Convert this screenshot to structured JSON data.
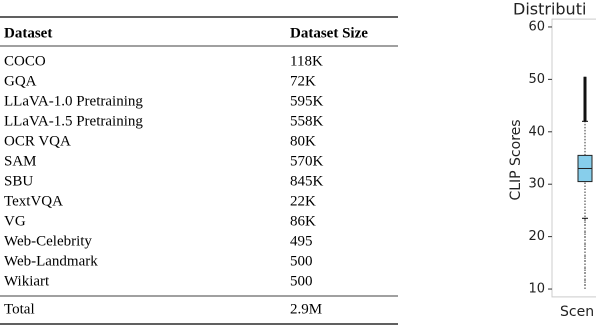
{
  "table": {
    "columns": [
      "Dataset",
      "Dataset Size"
    ],
    "rows": [
      [
        "COCO",
        "118K"
      ],
      [
        "GQA",
        "72K"
      ],
      [
        "LLaVA-1.0 Pretraining",
        "595K"
      ],
      [
        "LLaVA-1.5 Pretraining",
        "558K"
      ],
      [
        "OCR VQA",
        "80K"
      ],
      [
        "SAM",
        "570K"
      ],
      [
        "SBU",
        "845K"
      ],
      [
        "TextVQA",
        "22K"
      ],
      [
        "VG",
        "86K"
      ],
      [
        "Web-Celebrity",
        "495"
      ],
      [
        "Web-Landmark",
        "500"
      ],
      [
        "Wikiart",
        "500"
      ]
    ],
    "total": [
      "Total",
      "2.9M"
    ]
  },
  "chart_data": {
    "type": "box",
    "title": "Distributi",
    "y_label": "CLIP Scores",
    "categories": [
      "Scen"
    ],
    "ylim": [
      8.5,
      61.5
    ],
    "yticks": [
      10,
      20,
      30,
      40,
      50,
      60
    ],
    "color": "#87ceeb",
    "boxes": [
      {
        "min": 10,
        "whisker_low": 23.5,
        "q1": 30.5,
        "median": 33,
        "q3": 35.5,
        "whisker_high": 42,
        "max": 50.5
      }
    ]
  }
}
